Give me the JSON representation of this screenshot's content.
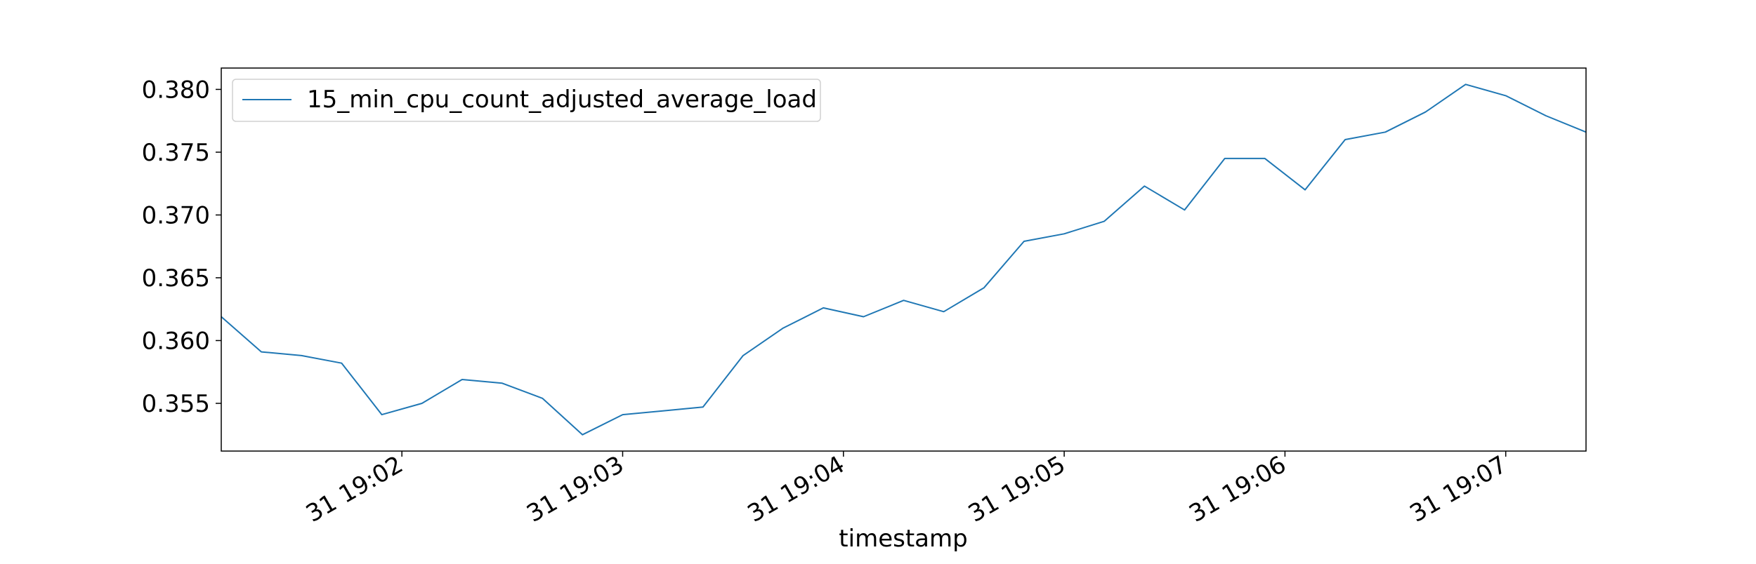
{
  "chart_data": {
    "type": "line",
    "title": "",
    "xlabel": "timestamp",
    "ylabel": "",
    "ylim": [
      0.3512,
      0.3817
    ],
    "xlim": [
      0,
      34
    ],
    "yticks": [
      {
        "value": 0.355,
        "label": "0.355"
      },
      {
        "value": 0.36,
        "label": "0.360"
      },
      {
        "value": 0.365,
        "label": "0.365"
      },
      {
        "value": 0.37,
        "label": "0.370"
      },
      {
        "value": 0.375,
        "label": "0.375"
      },
      {
        "value": 0.38,
        "label": "0.380"
      }
    ],
    "xticks": [
      {
        "value": 4.5,
        "label": "31 19:02"
      },
      {
        "value": 10.0,
        "label": "31 19:03"
      },
      {
        "value": 15.5,
        "label": "31 19:04"
      },
      {
        "value": 21.0,
        "label": "31 19:05"
      },
      {
        "value": 26.5,
        "label": "31 19:06"
      },
      {
        "value": 32.0,
        "label": "31 19:07"
      }
    ],
    "legend": {
      "placement": "top-left",
      "entries": [
        "15_min_cpu_count_adjusted_average_load"
      ]
    },
    "series": [
      {
        "name": "15_min_cpu_count_adjusted_average_load",
        "color": "#1f77b4",
        "x": [
          0,
          1,
          2,
          3,
          4,
          5,
          6,
          7,
          8,
          9,
          10,
          11,
          12,
          13,
          14,
          15,
          16,
          17,
          18,
          19,
          20,
          21,
          22,
          23,
          24,
          25,
          26,
          27,
          28,
          29,
          30,
          31,
          32,
          33,
          34
        ],
        "values": [
          0.3619,
          0.3591,
          0.3588,
          0.3582,
          0.3541,
          0.355,
          0.3569,
          0.3566,
          0.3554,
          0.3525,
          0.3541,
          0.3544,
          0.3547,
          0.3588,
          0.361,
          0.3626,
          0.3619,
          0.3632,
          0.3623,
          0.3642,
          0.3679,
          0.3685,
          0.3695,
          0.3723,
          0.3704,
          0.3745,
          0.3745,
          0.372,
          0.376,
          0.3766,
          0.3782,
          0.3804,
          0.3795,
          0.3779,
          0.3766
        ]
      }
    ]
  }
}
